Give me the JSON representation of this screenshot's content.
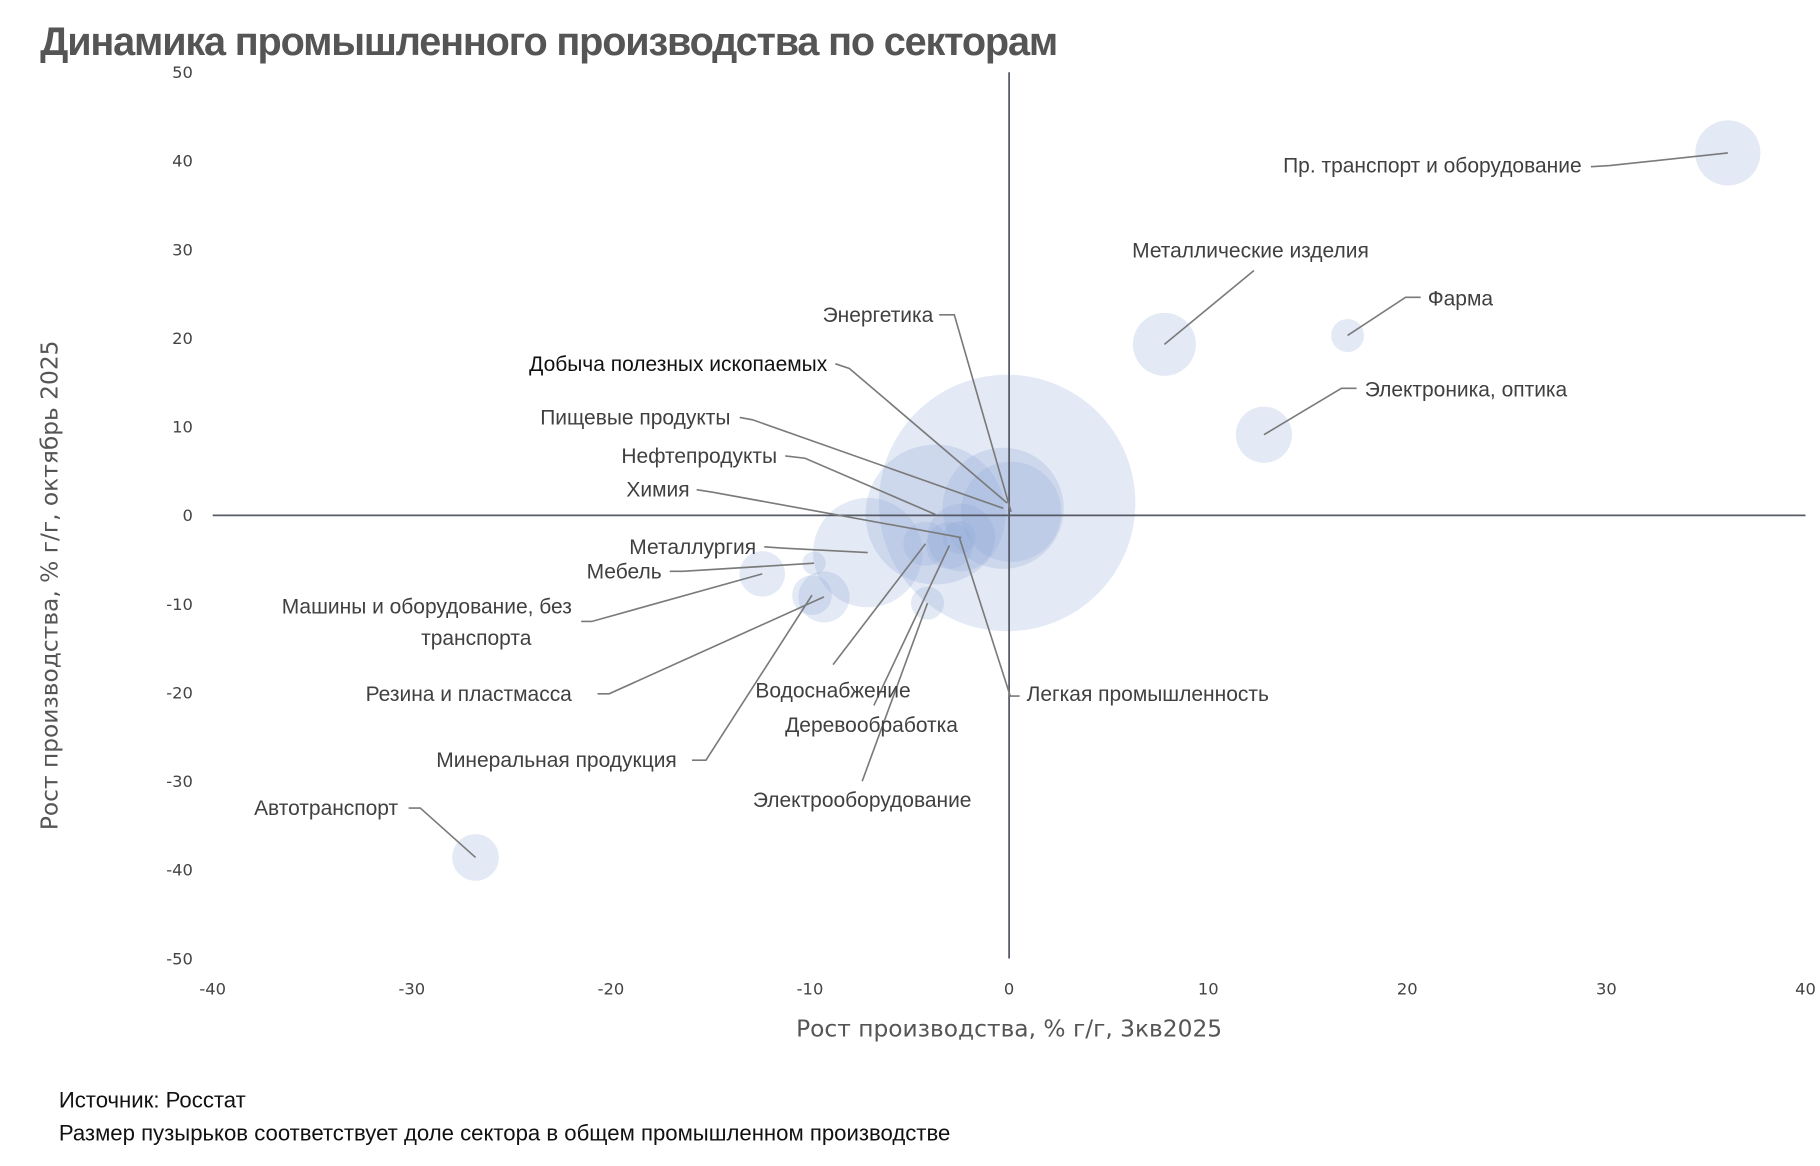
{
  "chart_data": {
    "type": "scatter",
    "subtype": "bubble",
    "title": "Динамика промышленного производства по секторам",
    "xlabel": "Рост производства, % г/г,  3кв2025",
    "ylabel": "Рост производства, % г/г, октябрь 2025",
    "xlim": [
      -40,
      40
    ],
    "ylim": [
      -50,
      50
    ],
    "xticks": [
      "-40",
      "-30",
      "-20",
      "-10",
      "0",
      "10",
      "20",
      "30",
      "40"
    ],
    "yticks": [
      "50",
      "40",
      "30",
      "20",
      "10",
      "0",
      "-10",
      "-20",
      "-30",
      "-40",
      "-50"
    ],
    "xtick_values": [
      -40,
      -30,
      -20,
      -10,
      0,
      10,
      20,
      30,
      40
    ],
    "ytick_values": [
      50,
      40,
      30,
      20,
      10,
      0,
      -10,
      -20,
      -30,
      -40,
      -50
    ],
    "grid": false,
    "size_meaning": "relative share of sector",
    "points": [
      {
        "name": "Добыча полезных ископаемых",
        "x": -0.1,
        "y": 1.4,
        "size": 121
      },
      {
        "name": "Нефтепродукты",
        "x": -3.7,
        "y": 0.1,
        "size": 36
      },
      {
        "name": "Пищевые продукты",
        "x": -0.3,
        "y": 0.8,
        "size": 27
      },
      {
        "name": "Металлургия",
        "x": -7.1,
        "y": -4.2,
        "size": 22
      },
      {
        "name": "Энергетика",
        "x": 0.1,
        "y": 0.4,
        "size": 18.5
      },
      {
        "name": "Химия",
        "x": -2.4,
        "y": -2.5,
        "size": 8.4
      },
      {
        "name": "Пр. транспорт и оборудование",
        "x": 36.1,
        "y": 40.9,
        "size": 7.8
      },
      {
        "name": "Металлические изделия",
        "x": 7.8,
        "y": 19.3,
        "size": 7.3
      },
      {
        "name": "Электроника, оптика",
        "x": 12.8,
        "y": 9.1,
        "size": 5.8
      },
      {
        "name": "Резина и пластмасса",
        "x": -9.3,
        "y": -9.2,
        "size": 4.8
      },
      {
        "name": "Деревообработка",
        "x": -3.0,
        "y": -3.4,
        "size": 4
      },
      {
        "name": "Автотранспорт",
        "x": -26.8,
        "y": -38.6,
        "size": 4
      },
      {
        "name": "Машины и оборудование, без транспорта",
        "x": -12.4,
        "y": -6.6,
        "size": 3.8
      },
      {
        "name": "Водоснабжение",
        "x": -4.2,
        "y": -3.2,
        "size": 3.6
      },
      {
        "name": "Минеральная продукция",
        "x": -9.9,
        "y": -9.0,
        "size": 2.9
      },
      {
        "name": "Фарма",
        "x": 17.0,
        "y": 20.3,
        "size": 2
      },
      {
        "name": "Электрооборудование",
        "x": -4.1,
        "y": -9.9,
        "size": 2
      },
      {
        "name": "Легкая промышленность",
        "x": -2.5,
        "y": -2.5,
        "size": 2
      },
      {
        "name": "Мебель",
        "x": -9.8,
        "y": -5.4,
        "size": 1
      }
    ]
  },
  "footnotes": {
    "source": "Источник: Росстат",
    "bubble_note": "Размер пузырьков соответствует доле сектора в общем промышленном производстве"
  }
}
